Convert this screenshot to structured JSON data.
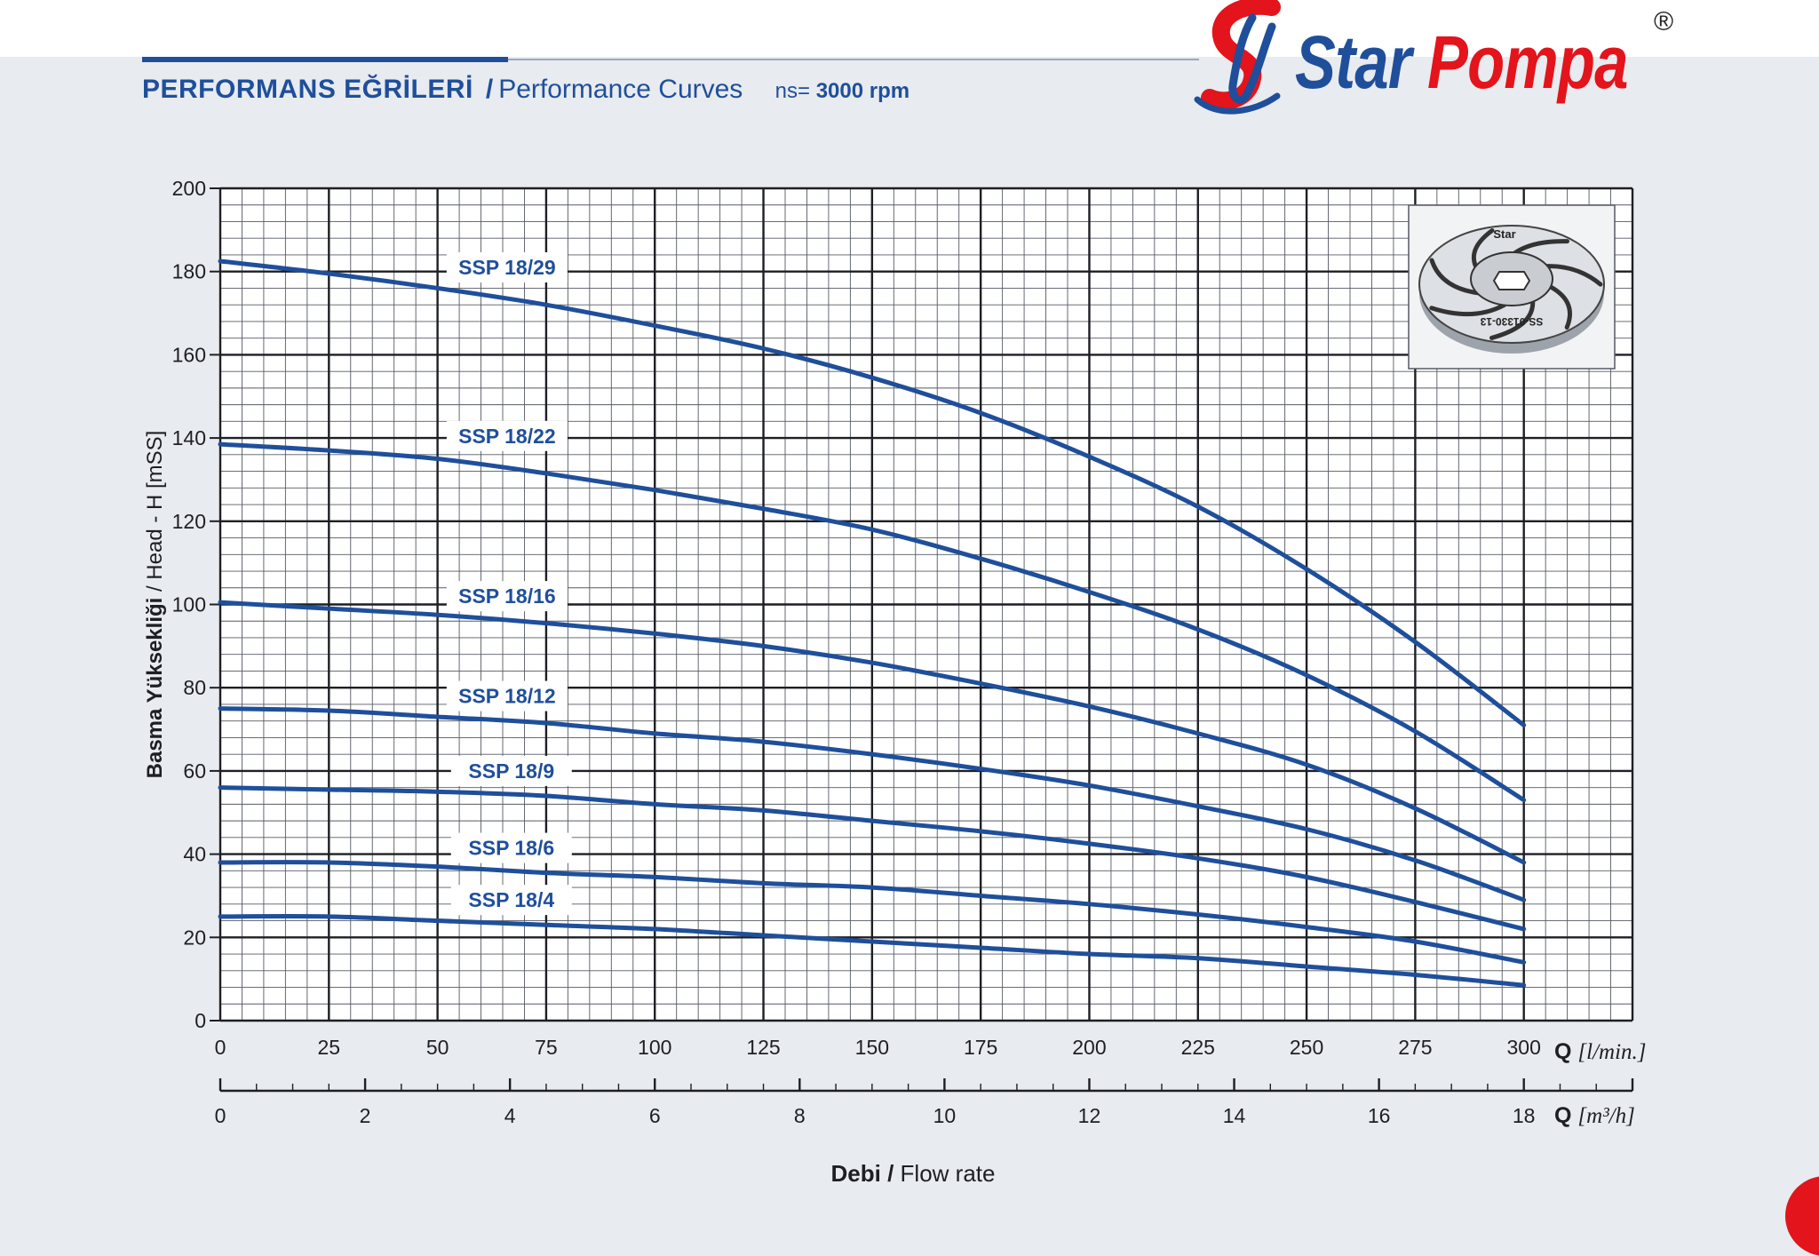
{
  "header": {
    "title_tr": "PERFORMANS EĞRİLERİ",
    "separator": "/",
    "title_en": "Performance Curves",
    "speed_label": "ns=",
    "speed_value": "3000 rpm"
  },
  "brand": {
    "word1": "Star",
    "word2": "Pompa",
    "registered": "®",
    "colors": {
      "blue": "#1f4f9b",
      "red": "#e3141b"
    }
  },
  "impeller": {
    "label_top": "Star",
    "label_code": "SS-01330-13"
  },
  "chart_data": {
    "type": "line",
    "xlabel": {
      "bold": "Debi",
      "sep": " / ",
      "rest": "Flow rate"
    },
    "ylabel": "Basma Yüksekliği / Head - H [mSS]",
    "x_unit": {
      "q": "Q",
      "unit": "[l/min.]"
    },
    "x2_unit": {
      "q": "Q",
      "unit": "[m³/h]"
    },
    "xlim": [
      0,
      325
    ],
    "ylim": [
      0,
      200
    ],
    "x_ticks": [
      0,
      25,
      50,
      75,
      100,
      125,
      150,
      175,
      200,
      225,
      250,
      275,
      300
    ],
    "x2_ticks": [
      0,
      2,
      4,
      6,
      8,
      10,
      12,
      14,
      16,
      18
    ],
    "y_ticks": [
      0,
      20,
      40,
      60,
      80,
      100,
      120,
      140,
      160,
      180,
      200
    ],
    "grid": true,
    "line_color": "#1f4f9b",
    "series": [
      {
        "name": "SSP 18/29",
        "x": [
          0,
          25,
          50,
          75,
          100,
          125,
          150,
          175,
          200,
          225,
          250,
          275,
          300
        ],
        "y": [
          182.5,
          179.5,
          176,
          172,
          167,
          161.5,
          154.5,
          146,
          135.5,
          123.5,
          108.5,
          91,
          71
        ]
      },
      {
        "name": "SSP 18/22",
        "x": [
          0,
          25,
          50,
          75,
          100,
          125,
          150,
          175,
          200,
          225,
          250,
          275,
          300
        ],
        "y": [
          138.5,
          137,
          135,
          131.5,
          127.5,
          123,
          118,
          111,
          103,
          94,
          83,
          69.5,
          53
        ]
      },
      {
        "name": "SSP 18/16",
        "x": [
          0,
          25,
          50,
          75,
          100,
          125,
          150,
          175,
          200,
          225,
          250,
          275,
          300
        ],
        "y": [
          100.5,
          99,
          97.5,
          95.5,
          93,
          90,
          86,
          81,
          75.5,
          69,
          61.5,
          51,
          38
        ]
      },
      {
        "name": "SSP 18/12",
        "x": [
          0,
          25,
          50,
          75,
          100,
          125,
          150,
          175,
          200,
          225,
          250,
          275,
          300
        ],
        "y": [
          75,
          74.5,
          73,
          71.5,
          69,
          67,
          64,
          60.5,
          56.5,
          51.5,
          46,
          38.5,
          29
        ]
      },
      {
        "name": "SSP 18/9",
        "x": [
          0,
          25,
          50,
          75,
          100,
          125,
          150,
          175,
          200,
          225,
          250,
          275,
          300
        ],
        "y": [
          56,
          55.5,
          55,
          54,
          52,
          50.5,
          48,
          45.5,
          42.5,
          39,
          34.5,
          28.5,
          22
        ]
      },
      {
        "name": "SSP 18/6",
        "x": [
          0,
          25,
          50,
          75,
          100,
          125,
          150,
          175,
          200,
          225,
          250,
          275,
          300
        ],
        "y": [
          38,
          38,
          37,
          35.5,
          34.5,
          33,
          32,
          30,
          28,
          25.5,
          22.5,
          19,
          14
        ]
      },
      {
        "name": "SSP 18/4",
        "x": [
          0,
          25,
          50,
          75,
          100,
          125,
          150,
          175,
          200,
          225,
          250,
          275,
          300
        ],
        "y": [
          25,
          25,
          24,
          23,
          22,
          20.5,
          19,
          17.5,
          16,
          15,
          13,
          11,
          8.5
        ]
      }
    ],
    "label_at_x": [
      66,
      66,
      66,
      66,
      67,
      67,
      67
    ],
    "label_at_y": [
      181,
      140.5,
      102,
      78,
      60,
      41.5,
      29
    ]
  }
}
